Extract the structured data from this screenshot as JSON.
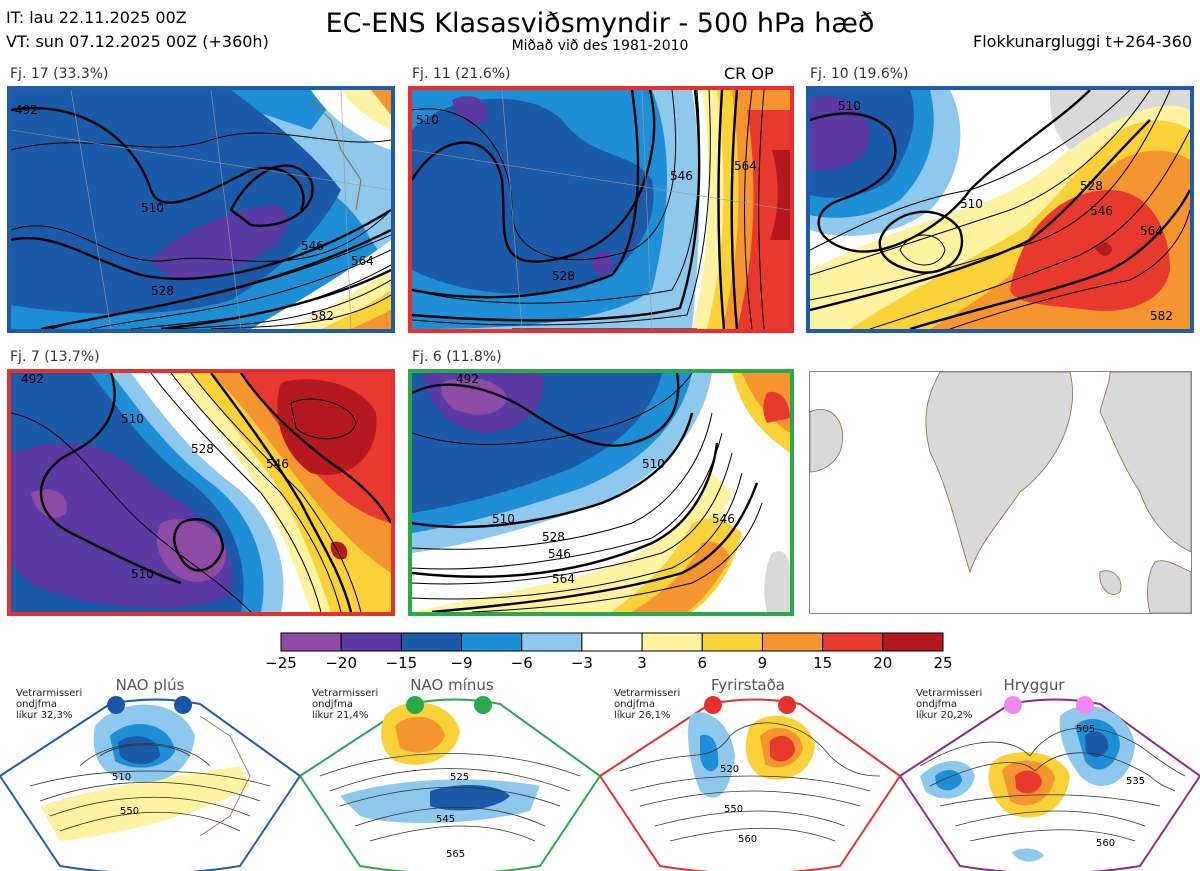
{
  "header": {
    "it": "IT: lau 22.11.2025 00Z",
    "vt": "VT: sun 07.12.2025 00Z  (+360h)",
    "title": "EC-ENS Klasasviðsmyndir - 500 hPa hæð",
    "subtitle": "Miðað við des 1981-2010",
    "window": "Flokkunargluggi t+264-360"
  },
  "panels": [
    {
      "label": "Fj. 17 (33.3%)",
      "border": "#1f5ba6",
      "contours": [
        "492",
        "510",
        "528",
        "546",
        "564",
        "582"
      ]
    },
    {
      "label": "Fj. 11 (21.6%)",
      "border": "#e53030",
      "extra": "CR OP",
      "contours": [
        "510",
        "528",
        "546",
        "564"
      ]
    },
    {
      "label": "Fj. 10 (19.6%)",
      "border": "#1f5ba6",
      "contours": [
        "510",
        "528",
        "546",
        "564",
        "582"
      ]
    },
    {
      "label": "Fj. 7 (13.7%)",
      "border": "#e53030",
      "contours": [
        "492",
        "510",
        "528",
        "546"
      ]
    },
    {
      "label": "Fj. 6 (11.8%)",
      "border": "#2aa84a",
      "contours": [
        "492",
        "510",
        "528",
        "546",
        "564"
      ]
    }
  ],
  "chart_data": {
    "type": "heatmap",
    "title": "EC-ENS Klasasviðsmyndir - 500 hPa hæð",
    "colorbar": {
      "ticks": [
        "−25",
        "−20",
        "−15",
        "−9",
        "−6",
        "−3",
        "3",
        "6",
        "9",
        "15",
        "20",
        "25"
      ],
      "colors": [
        "#8e4ba6",
        "#5b3aa3",
        "#1a5aa8",
        "#1e8fd6",
        "#8ec8ec",
        "#ffffff",
        "#fff2a0",
        "#f9d23a",
        "#f5952f",
        "#e8392e",
        "#b3191e"
      ]
    },
    "clusters": [
      {
        "name": "Fj. 17",
        "share_pct": 33.3
      },
      {
        "name": "Fj. 11",
        "share_pct": 21.6
      },
      {
        "name": "Fj. 10",
        "share_pct": 19.6
      },
      {
        "name": "Fj. 7",
        "share_pct": 13.7
      },
      {
        "name": "Fj. 6",
        "share_pct": 11.8
      }
    ]
  },
  "regimes": [
    {
      "title": "NAO plús",
      "info1": "Vetrarmisseri",
      "info2": "ondjfma",
      "info3": "líkur 32,3%",
      "color": "#1f5ba6",
      "dot": "#1a56a6",
      "labels": [
        "510",
        "550"
      ]
    },
    {
      "title": "NAO mínus",
      "info1": "Vetrarmisseri",
      "info2": "ondjfma",
      "info3": "líkur 21,4%",
      "color": "#2aa84a",
      "dot": "#2aa84a",
      "labels": [
        "525",
        "545",
        "565"
      ]
    },
    {
      "title": "Fyrirstaða",
      "info1": "Vetrarmisseri",
      "info2": "ondjfma",
      "info3": "líkur 26,1%",
      "color": "#e53030",
      "dot": "#e53030",
      "labels": [
        "520",
        "550",
        "560"
      ]
    },
    {
      "title": "Hryggur",
      "info1": "Vetrarmisseri",
      "info2": "ondjfma",
      "info3": "líkur 20,2%",
      "color": "#8a2a8a",
      "dot": "#ee88ee",
      "labels": [
        "505",
        "535",
        "560"
      ]
    }
  ]
}
